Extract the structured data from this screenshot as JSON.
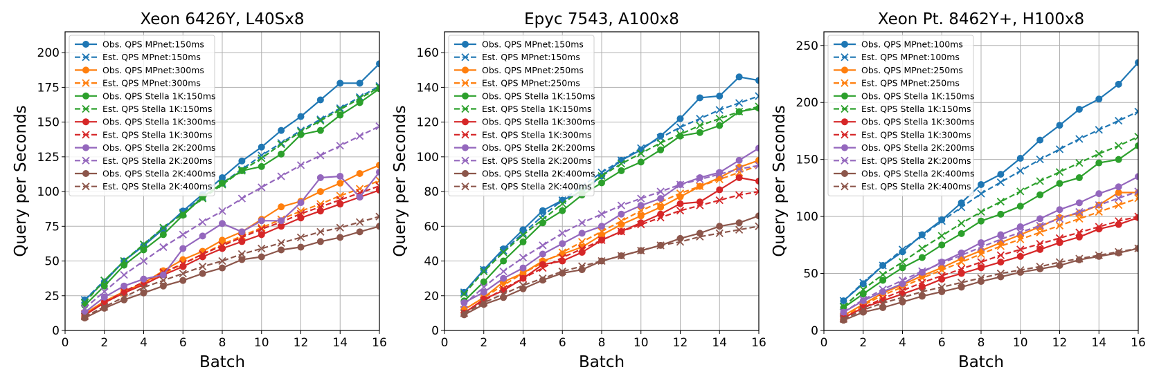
{
  "chart_data": [
    {
      "type": "line",
      "title": "Xeon 6426Y, L40Sx8",
      "xlabel": "Batch",
      "ylabel": "Query per Seconds",
      "xlim": [
        0,
        16
      ],
      "ylim": [
        0,
        215
      ],
      "xticks": [
        0,
        2,
        4,
        6,
        8,
        10,
        12,
        14,
        16
      ],
      "yticks": [
        0,
        25,
        50,
        75,
        100,
        125,
        150,
        175,
        200
      ],
      "grid": true,
      "legend_loc": "upper left",
      "x": [
        1,
        2,
        3,
        4,
        5,
        6,
        7,
        8,
        9,
        10,
        11,
        12,
        13,
        14,
        15,
        16
      ],
      "series": [
        {
          "name": "Obs. QPS MPnet:150ms",
          "color": "#1f77b4",
          "marker": "o",
          "dash": false,
          "values": [
            22,
            35,
            50,
            61,
            73,
            86,
            98,
            110,
            122,
            132,
            144,
            154,
            166,
            178,
            178,
            192
          ]
        },
        {
          "name": "Est. QPS MPnet:150ms",
          "color": "#1f77b4",
          "marker": "x",
          "dash": true,
          "values": [
            22,
            36,
            50,
            62,
            74,
            85,
            96,
            106,
            116,
            126,
            135,
            144,
            152,
            160,
            168,
            176
          ]
        },
        {
          "name": "Obs. QPS MPnet:300ms",
          "color": "#ff7f0e",
          "marker": "o",
          "dash": false,
          "values": [
            12,
            21,
            28,
            34,
            43,
            51,
            57,
            65,
            71,
            80,
            89,
            93,
            100,
            106,
            113,
            119
          ]
        },
        {
          "name": "Est. QPS MPnet:300ms",
          "color": "#ff7f0e",
          "marker": "x",
          "dash": true,
          "values": [
            12,
            20,
            27,
            34,
            41,
            48,
            55,
            62,
            68,
            74,
            80,
            86,
            91,
            97,
            102,
            108
          ]
        },
        {
          "name": "Obs. QPS Stella 1K:150ms",
          "color": "#2ca02c",
          "marker": "o",
          "dash": false,
          "values": [
            18,
            32,
            47,
            58,
            69,
            83,
            96,
            106,
            115,
            118,
            127,
            141,
            144,
            155,
            164,
            174
          ]
        },
        {
          "name": "Est. QPS Stella 1K:150ms",
          "color": "#2ca02c",
          "marker": "x",
          "dash": true,
          "values": [
            20,
            36,
            50,
            62,
            74,
            84,
            95,
            105,
            115,
            124,
            134,
            143,
            151,
            159,
            167,
            175
          ]
        },
        {
          "name": "Obs. QPS Stella 1K:300ms",
          "color": "#d62728",
          "marker": "o",
          "dash": false,
          "values": [
            11,
            20,
            27,
            33,
            40,
            46,
            53,
            59,
            64,
            69,
            75,
            81,
            86,
            91,
            96,
            101
          ]
        },
        {
          "name": "Est. QPS Stella 1K:300ms",
          "color": "#d62728",
          "marker": "x",
          "dash": true,
          "values": [
            11,
            20,
            28,
            35,
            42,
            48,
            55,
            61,
            67,
            73,
            78,
            84,
            89,
            94,
            99,
            104
          ]
        },
        {
          "name": "Obs. QPS Stella 2K:200ms",
          "color": "#9467bd",
          "marker": "o",
          "dash": false,
          "values": [
            13,
            24,
            32,
            37,
            40,
            59,
            68,
            77,
            71,
            79,
            79,
            92,
            110,
            111,
            96,
            114
          ]
        },
        {
          "name": "Est. QPS Stella 2K:200ms",
          "color": "#9467bd",
          "marker": "x",
          "dash": true,
          "values": [
            16,
            28,
            40,
            50,
            60,
            69,
            78,
            86,
            95,
            103,
            111,
            119,
            126,
            133,
            140,
            147
          ]
        },
        {
          "name": "Obs. QPS Stella 2K:400ms",
          "color": "#8c564b",
          "marker": "o",
          "dash": false,
          "values": [
            9,
            16,
            22,
            27,
            32,
            36,
            41,
            45,
            51,
            53,
            58,
            60,
            64,
            67,
            71,
            75
          ]
        },
        {
          "name": "Est. QPS Stella 2K:400ms",
          "color": "#8c564b",
          "marker": "x",
          "dash": true,
          "values": [
            10,
            17,
            24,
            31,
            36,
            41,
            46,
            50,
            55,
            59,
            63,
            67,
            71,
            74,
            78,
            82
          ]
        }
      ]
    },
    {
      "type": "line",
      "title": "Epyc 7543, A100x8",
      "xlabel": "Batch",
      "ylabel": "Query per Seconds",
      "xlim": [
        0,
        16
      ],
      "ylim": [
        0,
        172
      ],
      "xticks": [
        0,
        2,
        4,
        6,
        8,
        10,
        12,
        14,
        16
      ],
      "yticks": [
        0,
        20,
        40,
        60,
        80,
        100,
        120,
        140,
        160
      ],
      "grid": true,
      "legend_loc": "upper left",
      "x": [
        1,
        2,
        3,
        4,
        5,
        6,
        7,
        8,
        9,
        10,
        11,
        12,
        13,
        14,
        15,
        16
      ],
      "series": [
        {
          "name": "Obs. QPS MPnet:150ms",
          "color": "#1f77b4",
          "marker": "o",
          "dash": false,
          "values": [
            22,
            35,
            47,
            58,
            69,
            75,
            80,
            89,
            98,
            104,
            112,
            122,
            134,
            135,
            146,
            144
          ]
        },
        {
          "name": "Est. QPS MPnet:150ms",
          "color": "#1f77b4",
          "marker": "x",
          "dash": true,
          "values": [
            22,
            35,
            46,
            56,
            66,
            75,
            83,
            91,
            98,
            105,
            111,
            117,
            122,
            127,
            131,
            135
          ]
        },
        {
          "name": "Obs. QPS MPnet:250ms",
          "color": "#ff7f0e",
          "marker": "o",
          "dash": false,
          "values": [
            12,
            19,
            28,
            33,
            40,
            44,
            48,
            55,
            61,
            66,
            71,
            77,
            83,
            88,
            94,
            98
          ]
        },
        {
          "name": "Est. QPS MPnet:250ms",
          "color": "#ff7f0e",
          "marker": "x",
          "dash": true,
          "values": [
            12,
            19,
            26,
            33,
            39,
            45,
            51,
            57,
            63,
            69,
            74,
            79,
            83,
            87,
            91,
            95
          ]
        },
        {
          "name": "Obs. QPS Stella 1K:150ms",
          "color": "#2ca02c",
          "marker": "o",
          "dash": false,
          "values": [
            17,
            28,
            40,
            51,
            62,
            69,
            78,
            85,
            92,
            97,
            104,
            112,
            114,
            118,
            126,
            128
          ]
        },
        {
          "name": "Est. QPS Stella 1K:150ms",
          "color": "#2ca02c",
          "marker": "x",
          "dash": true,
          "values": [
            21,
            34,
            45,
            55,
            64,
            73,
            81,
            89,
            96,
            102,
            108,
            113,
            118,
            122,
            126,
            129
          ]
        },
        {
          "name": "Obs. QPS Stella 1K:300ms",
          "color": "#d62728",
          "marker": "o",
          "dash": false,
          "values": [
            10,
            18,
            23,
            30,
            38,
            40,
            45,
            52,
            57,
            62,
            67,
            73,
            74,
            81,
            88,
            86
          ]
        },
        {
          "name": "Est. QPS Stella 1K:300ms",
          "color": "#d62728",
          "marker": "x",
          "dash": true,
          "values": [
            10,
            17,
            24,
            30,
            36,
            42,
            47,
            52,
            57,
            61,
            65,
            69,
            72,
            75,
            78,
            80
          ]
        },
        {
          "name": "Obs. QPS Stella 2K:200ms",
          "color": "#9467bd",
          "marker": "o",
          "dash": false,
          "values": [
            16,
            22,
            30,
            36,
            44,
            50,
            56,
            60,
            67,
            72,
            76,
            84,
            88,
            91,
            98,
            105
          ]
        },
        {
          "name": "Est. QPS Stella 2K:200ms",
          "color": "#9467bd",
          "marker": "x",
          "dash": true,
          "values": [
            15,
            25,
            34,
            42,
            49,
            56,
            62,
            67,
            72,
            76,
            80,
            84,
            87,
            90,
            93,
            95
          ]
        },
        {
          "name": "Obs. QPS Stella 2K:400ms",
          "color": "#8c564b",
          "marker": "o",
          "dash": false,
          "values": [
            9,
            15,
            19,
            24,
            29,
            33,
            35,
            40,
            43,
            46,
            49,
            53,
            56,
            60,
            62,
            66
          ]
        },
        {
          "name": "Est. QPS Stella 2K:400ms",
          "color": "#8c564b",
          "marker": "x",
          "dash": true,
          "values": [
            10,
            16,
            21,
            26,
            30,
            34,
            37,
            40,
            43,
            46,
            49,
            51,
            54,
            56,
            58,
            60
          ]
        }
      ]
    },
    {
      "type": "line",
      "title": "Xeon Pt. 8462Y+, H100x8",
      "xlabel": "Batch",
      "ylabel": "Query per Seconds",
      "xlim": [
        0,
        16
      ],
      "ylim": [
        0,
        262
      ],
      "xticks": [
        0,
        2,
        4,
        6,
        8,
        10,
        12,
        14,
        16
      ],
      "yticks": [
        0,
        50,
        100,
        150,
        200,
        250
      ],
      "grid": true,
      "legend_loc": "upper left",
      "x": [
        1,
        2,
        3,
        4,
        5,
        6,
        7,
        8,
        9,
        10,
        11,
        12,
        13,
        14,
        15,
        16
      ],
      "series": [
        {
          "name": "Obs. QPS MPnet:100ms",
          "color": "#1f77b4",
          "marker": "o",
          "dash": false,
          "values": [
            26,
            41,
            57,
            69,
            84,
            97,
            112,
            128,
            137,
            151,
            167,
            180,
            194,
            203,
            216,
            235
          ]
        },
        {
          "name": "Est. QPS MPnet:100ms",
          "color": "#1f77b4",
          "marker": "x",
          "dash": true,
          "values": [
            26,
            42,
            57,
            71,
            83,
            96,
            108,
            120,
            130,
            140,
            150,
            159,
            168,
            176,
            184,
            192
          ]
        },
        {
          "name": "Obs. QPS MPnet:250ms",
          "color": "#ff7f0e",
          "marker": "o",
          "dash": false,
          "values": [
            13,
            23,
            33,
            40,
            48,
            55,
            63,
            70,
            77,
            84,
            91,
            99,
            103,
            110,
            121,
            121
          ]
        },
        {
          "name": "Est. QPS MPnet:250ms",
          "color": "#ff7f0e",
          "marker": "x",
          "dash": true,
          "values": [
            12,
            22,
            31,
            38,
            46,
            53,
            60,
            67,
            74,
            80,
            86,
            92,
            98,
            104,
            110,
            116
          ]
        },
        {
          "name": "Obs. QPS Stella 1K:150ms",
          "color": "#2ca02c",
          "marker": "o",
          "dash": false,
          "values": [
            20,
            32,
            44,
            55,
            64,
            75,
            85,
            96,
            102,
            109,
            119,
            129,
            134,
            147,
            150,
            162
          ]
        },
        {
          "name": "Est. QPS Stella 1K:150ms",
          "color": "#2ca02c",
          "marker": "x",
          "dash": true,
          "values": [
            21,
            36,
            49,
            60,
            72,
            83,
            94,
            104,
            113,
            122,
            131,
            139,
            147,
            155,
            162,
            170
          ]
        },
        {
          "name": "Obs. QPS Stella 1K:300ms",
          "color": "#d62728",
          "marker": "o",
          "dash": false,
          "values": [
            11,
            20,
            26,
            32,
            38,
            45,
            50,
            55,
            60,
            65,
            71,
            77,
            82,
            89,
            93,
            99
          ]
        },
        {
          "name": "Est. QPS Stella 1K:300ms",
          "color": "#d62728",
          "marker": "x",
          "dash": true,
          "values": [
            11,
            20,
            28,
            35,
            42,
            48,
            54,
            60,
            66,
            71,
            76,
            81,
            86,
            91,
            96,
            100
          ]
        },
        {
          "name": "Obs. QPS Stella 2K:200ms",
          "color": "#9467bd",
          "marker": "o",
          "dash": false,
          "values": [
            16,
            26,
            34,
            41,
            51,
            60,
            68,
            77,
            84,
            91,
            98,
            106,
            112,
            120,
            126,
            135
          ]
        },
        {
          "name": "Est. QPS Stella 2K:200ms",
          "color": "#9467bd",
          "marker": "x",
          "dash": true,
          "values": [
            16,
            27,
            36,
            44,
            52,
            59,
            66,
            73,
            80,
            86,
            92,
            98,
            104,
            110,
            116,
            122
          ]
        },
        {
          "name": "Obs. QPS Stella 2K:400ms",
          "color": "#8c564b",
          "marker": "o",
          "dash": false,
          "values": [
            9,
            16,
            20,
            25,
            30,
            34,
            38,
            43,
            47,
            51,
            54,
            57,
            62,
            65,
            68,
            72
          ]
        },
        {
          "name": "Est. QPS Stella 2K:400ms",
          "color": "#8c564b",
          "marker": "x",
          "dash": true,
          "values": [
            10,
            18,
            24,
            29,
            34,
            38,
            42,
            46,
            50,
            53,
            56,
            60,
            63,
            66,
            69,
            72
          ]
        }
      ]
    }
  ]
}
